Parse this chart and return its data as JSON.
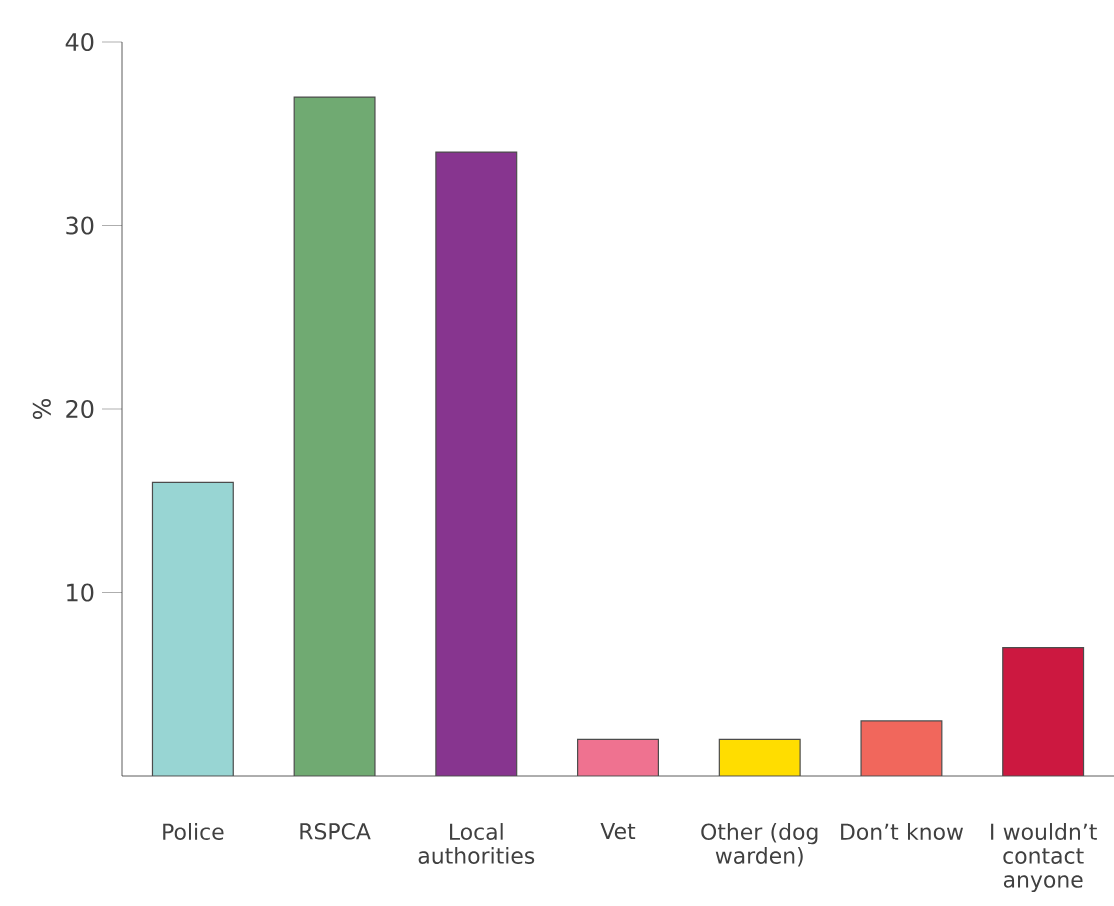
{
  "chart_data": {
    "type": "bar",
    "ylabel": "%",
    "categories": [
      "Police",
      "RSPCA",
      "Local authorities",
      "Vet",
      "Other (dog warden)",
      "Don’t know",
      "I wouldn’t contact anyone"
    ],
    "values": [
      16,
      37,
      34,
      2,
      2,
      3,
      7
    ],
    "colors": [
      "#98d5d3",
      "#70aa72",
      "#87358f",
      "#ef7290",
      "#ffdd00",
      "#f1675c",
      "#cc1840"
    ],
    "ylim": [
      0,
      40
    ],
    "yticks": [
      10,
      20,
      30,
      40
    ]
  }
}
